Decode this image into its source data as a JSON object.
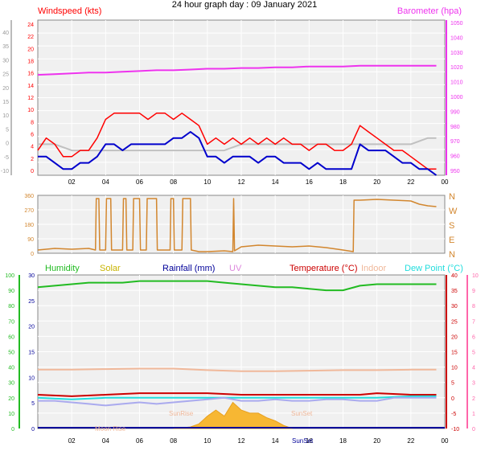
{
  "page": {
    "title": "24 hour graph day : 09 January 2021"
  },
  "colors": {
    "windspeed": "#ff0000",
    "gust_avg": "#0000cc",
    "gust_grey": "#c0c0c0",
    "barometer": "#ee33ee",
    "wind_dir": "#d2862e",
    "humidity": "#22bb22",
    "solar": "#c8b400",
    "rainfall": "#000099",
    "uv": "#dd88dd",
    "temperature": "#cc0000",
    "indoor": "#f0b89a",
    "dewpoint": "#22dddd",
    "plot_bg": "#f0f0f0",
    "grid": "#ffffff"
  },
  "chart_data": [
    {
      "type": "line",
      "id": "wind",
      "left_axis": {
        "label": "Windspeed (kts)",
        "ticks": [
          "24",
          "22",
          "20",
          "18",
          "16",
          "14",
          "12",
          "10",
          "8",
          "6",
          "4",
          "2",
          "0"
        ],
        "ylim": [
          0,
          25
        ]
      },
      "outer_axis": {
        "ticks": [
          "40",
          "35",
          "30",
          "25",
          "20",
          "15",
          "10",
          "5",
          "0",
          "-5",
          "-10"
        ]
      },
      "right_axis": {
        "label": "Barometer (hpa)",
        "ticks": [
          "1050",
          "1040",
          "1030",
          "1020",
          "1010",
          "1000",
          "990",
          "980",
          "970",
          "960",
          "950"
        ],
        "ylim": [
          950,
          1052
        ]
      },
      "x_ticks": [
        "02",
        "04",
        "06",
        "08",
        "10",
        "12",
        "14",
        "16",
        "18",
        "20",
        "22",
        "00"
      ],
      "xlim": [
        0,
        24
      ],
      "series": [
        {
          "key": "barometer",
          "x": [
            0,
            1,
            2,
            3,
            4,
            5,
            6,
            7,
            8,
            9,
            10,
            11,
            12,
            13,
            14,
            15,
            16,
            17,
            18,
            19,
            20,
            21,
            22,
            23,
            23.5
          ],
          "values": [
            1016,
            1016.5,
            1017,
            1017.5,
            1017.5,
            1018,
            1018.5,
            1019,
            1019,
            1019.5,
            1020,
            1020,
            1020.5,
            1020.5,
            1021,
            1021,
            1021.5,
            1021.5,
            1021.5,
            1022,
            1022,
            1022,
            1022,
            1022,
            1022
          ]
        },
        {
          "key": "windspeed",
          "x": [
            0,
            0.5,
            1,
            1.5,
            2,
            2.5,
            3,
            3.5,
            4,
            4.5,
            5,
            5.5,
            6,
            6.5,
            7,
            7.5,
            8,
            8.5,
            9,
            9.5,
            10,
            10.5,
            11,
            11.5,
            12,
            12.5,
            13,
            13.5,
            14,
            14.5,
            15,
            15.5,
            16,
            16.5,
            17,
            17.5,
            18,
            18.5,
            19,
            19.5,
            20,
            20.5,
            21,
            21.5,
            22,
            22.5,
            23,
            23.5
          ],
          "values": [
            4,
            6,
            5,
            3,
            3,
            4,
            4,
            6,
            9,
            10,
            10,
            10,
            10,
            9,
            10,
            10,
            9,
            10,
            9,
            8,
            5,
            6,
            5,
            6,
            5,
            6,
            5,
            6,
            5,
            6,
            5,
            5,
            4,
            5,
            5,
            4,
            4,
            5,
            8,
            7,
            6,
            5,
            4,
            4,
            3,
            2,
            1,
            1
          ]
        },
        {
          "key": "gust_avg",
          "x": [
            0,
            0.5,
            1,
            1.5,
            2,
            2.5,
            3,
            3.5,
            4,
            4.5,
            5,
            5.5,
            6,
            6.5,
            7,
            7.5,
            8,
            8.5,
            9,
            9.5,
            10,
            10.5,
            11,
            11.5,
            12,
            12.5,
            13,
            13.5,
            14,
            14.5,
            15,
            15.5,
            16,
            16.5,
            17,
            17.5,
            18,
            18.5,
            19,
            19.5,
            20,
            20.5,
            21,
            21.5,
            22,
            22.5,
            23,
            23.5
          ],
          "values": [
            3,
            3,
            2,
            1,
            1,
            2,
            2,
            3,
            5,
            5,
            4,
            5,
            5,
            5,
            5,
            5,
            6,
            6,
            7,
            6,
            3,
            3,
            2,
            3,
            3,
            3,
            2,
            3,
            3,
            2,
            2,
            2,
            1,
            2,
            1,
            1,
            1,
            1,
            5,
            4,
            4,
            4,
            3,
            2,
            2,
            1,
            1,
            0
          ]
        },
        {
          "key": "gust_grey",
          "x": [
            0,
            1,
            2,
            3,
            4,
            5,
            6,
            7,
            8,
            9,
            10,
            11,
            12,
            13,
            14,
            15,
            16,
            17,
            18,
            19,
            20,
            21,
            22,
            23,
            23.5
          ],
          "values": [
            5,
            5,
            4,
            4,
            4,
            4,
            4,
            4,
            4,
            4,
            4,
            4,
            5,
            5,
            5,
            5,
            5,
            5,
            5,
            5,
            5,
            5,
            5,
            6,
            6
          ]
        }
      ]
    },
    {
      "type": "line",
      "id": "wind_direction",
      "left_axis": {
        "ticks": [
          "360",
          "270",
          "180",
          "90",
          "0"
        ],
        "ylim": [
          0,
          360
        ]
      },
      "right_axis": {
        "ticks": [
          "N",
          "W",
          "S",
          "E",
          "N"
        ]
      },
      "xlim": [
        0,
        24
      ],
      "series": [
        {
          "key": "wind_dir",
          "x": [
            0,
            1,
            2,
            3,
            3.4,
            3.45,
            3.6,
            3.65,
            4,
            4.05,
            4.3,
            4.35,
            5,
            5.05,
            5.2,
            5.25,
            5.6,
            5.65,
            6,
            6.05,
            6.4,
            6.45,
            7,
            7.05,
            7.8,
            7.85,
            8,
            8.05,
            8.5,
            8.55,
            9,
            9.05,
            9.5,
            10,
            11,
            11.5,
            11.55,
            11.6,
            12,
            13,
            14,
            15,
            16,
            17,
            18,
            18.6,
            18.65,
            19,
            20,
            21,
            22,
            22.5,
            23,
            23.5
          ],
          "values": [
            20,
            30,
            25,
            30,
            20,
            340,
            340,
            20,
            20,
            340,
            340,
            20,
            20,
            340,
            340,
            20,
            20,
            340,
            340,
            20,
            20,
            340,
            340,
            20,
            20,
            340,
            340,
            20,
            20,
            340,
            340,
            20,
            10,
            10,
            15,
            10,
            340,
            15,
            40,
            50,
            45,
            40,
            45,
            35,
            20,
            10,
            330,
            330,
            335,
            330,
            325,
            305,
            295,
            290
          ]
        }
      ]
    },
    {
      "type": "line",
      "id": "environment",
      "legend": [
        "Humidity",
        "Solar",
        "Rainfall (mm)",
        "UV",
        "Temperature (°C)",
        "Indoor",
        "Dew Point (°C)"
      ],
      "left_axis": {
        "ticks": [
          "100",
          "90",
          "80",
          "70",
          "60",
          "50",
          "40",
          "30",
          "20",
          "10",
          "0"
        ],
        "ylim": [
          0,
          100
        ]
      },
      "left_axis2": {
        "ticks": [
          "30",
          "25",
          "20",
          "15",
          "10",
          "5",
          "0"
        ],
        "ylim": [
          0,
          30
        ]
      },
      "right_axis": {
        "ticks": [
          "40",
          "35",
          "30",
          "25",
          "20",
          "15",
          "10",
          "5",
          "0",
          "-5",
          "-10"
        ],
        "ylim": [
          -10,
          40
        ]
      },
      "right_axis2": {
        "ticks": [
          "10",
          "9",
          "8",
          "7",
          "6",
          "5",
          "4",
          "3",
          "2",
          "1",
          "0"
        ],
        "ylim": [
          0,
          10
        ]
      },
      "x_ticks": [
        "02",
        "04",
        "06",
        "08",
        "10",
        "12",
        "14",
        "16",
        "18",
        "20",
        "22",
        "00"
      ],
      "xlim": [
        0,
        24
      ],
      "annotations": [
        "Moon Rise",
        "SunRise",
        "SunSet",
        "SunSet"
      ],
      "series": [
        {
          "key": "humidity",
          "x": [
            0,
            1,
            2,
            3,
            4,
            5,
            6,
            7,
            8,
            9,
            10,
            11,
            12,
            13,
            14,
            15,
            16,
            17,
            18,
            19,
            20,
            21,
            22,
            23,
            23.5
          ],
          "values": [
            92,
            93,
            94,
            95,
            95,
            95,
            96,
            96,
            96,
            96,
            96,
            95,
            94,
            93,
            92,
            92,
            91,
            90,
            90,
            93,
            94,
            94,
            94,
            94,
            94
          ]
        },
        {
          "key": "indoor",
          "x": [
            0,
            2,
            4,
            6,
            8,
            10,
            12,
            14,
            16,
            18,
            20,
            22,
            23.5
          ],
          "values": [
            11.5,
            11.5,
            11.6,
            11.7,
            11.7,
            11.4,
            11.2,
            11.2,
            11.3,
            11.4,
            11.4,
            11.5,
            11.5
          ]
        },
        {
          "key": "temperature",
          "x": [
            0,
            2,
            4,
            6,
            8,
            10,
            12,
            14,
            16,
            18,
            19,
            20,
            22,
            23.5
          ],
          "values": [
            1,
            0.5,
            1,
            1.5,
            1.5,
            1.5,
            1.0,
            1.0,
            1.0,
            1.0,
            1.0,
            1.5,
            1.0,
            1.0
          ]
        },
        {
          "key": "dewpoint",
          "x": [
            0,
            2,
            4,
            6,
            8,
            10,
            12,
            14,
            16,
            18,
            20,
            22,
            23.5
          ],
          "values": [
            0,
            -0.5,
            0,
            0,
            0,
            0,
            0,
            0,
            0,
            0,
            0,
            0.5,
            0.5
          ]
        },
        {
          "key": "uv",
          "x": [
            0,
            1,
            2,
            3,
            4,
            5,
            6,
            7,
            8,
            9,
            10,
            11,
            12,
            13,
            14,
            15,
            16,
            17,
            18,
            19,
            20,
            21,
            22,
            23,
            23.5
          ],
          "values": [
            -1,
            -1,
            -1.5,
            -2,
            -2.5,
            -2,
            -1.5,
            -2,
            -1.5,
            -1,
            -0.5,
            0,
            -1,
            -1,
            -0.5,
            -1,
            -1,
            -0.5,
            -0.5,
            -1,
            -1,
            0,
            0,
            0,
            0
          ]
        },
        {
          "key": "solar",
          "x": [
            8,
            9,
            9.5,
            10,
            10.5,
            11,
            11.5,
            12,
            12.5,
            13,
            13.5,
            14,
            14.5,
            15
          ],
          "values": [
            0,
            0.1,
            0.3,
            0.8,
            1.2,
            0.8,
            1.7,
            1.2,
            1.0,
            1.0,
            0.7,
            0.5,
            0.2,
            0
          ]
        }
      ]
    }
  ]
}
